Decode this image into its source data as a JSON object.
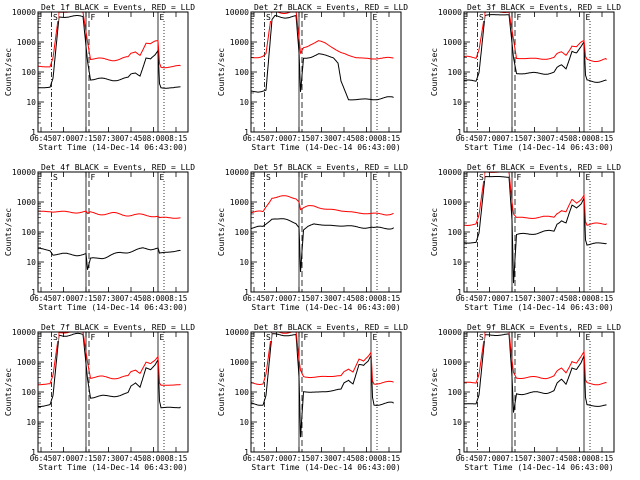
{
  "shared": {
    "time_ticks": [
      "06:45",
      "07:00",
      "07:15",
      "07:30",
      "07:45",
      "08:00",
      "08:15"
    ],
    "y_ticks": [
      "1",
      "10",
      "100",
      "1000",
      "10000"
    ],
    "y_label": "Counts/sec",
    "x_label": "Start Time (14-Dec-14 06:43:00)",
    "colors": {
      "events": "#000000",
      "lld": "#ff0000",
      "axes": "#000000"
    },
    "markers": [
      {
        "label": "S",
        "time_min": 9,
        "style": "dash-dot"
      },
      {
        "label": "F",
        "time_min": 34,
        "style": "dashed"
      },
      {
        "label": "",
        "time_min": 32,
        "style": "solid"
      },
      {
        "label": "E",
        "time_min": 80,
        "style": "solid"
      },
      {
        "label": "",
        "time_min": 84,
        "style": "dotted"
      }
    ]
  },
  "chart_data": [
    {
      "type": "line",
      "title": "Det 1f BLACK = Events, RED = LLD",
      "xlim_min": [
        0,
        100
      ],
      "ylim": [
        1,
        10000
      ],
      "yscale": "log",
      "series": [
        {
          "name": "Events",
          "color": "#000000",
          "x": [
            0,
            8,
            10,
            14,
            16,
            30,
            33,
            35,
            45,
            55,
            60,
            62,
            65,
            68,
            72,
            75,
            78,
            80,
            81,
            82,
            90,
            95
          ],
          "y": [
            30,
            30,
            60,
            7000,
            7000,
            7000,
            250,
            60,
            55,
            58,
            60,
            80,
            95,
            80,
            300,
            260,
            350,
            500,
            40,
            30,
            30,
            32
          ]
        },
        {
          "name": "LLD",
          "color": "#ff0000",
          "x": [
            0,
            8,
            10,
            14,
            16,
            30,
            33,
            35,
            45,
            55,
            60,
            62,
            65,
            68,
            72,
            75,
            78,
            80,
            81,
            82,
            90,
            95
          ],
          "y": [
            150,
            150,
            300,
            10000,
            10000,
            10000,
            1100,
            280,
            260,
            270,
            290,
            400,
            500,
            400,
            900,
            800,
            1000,
            1100,
            200,
            150,
            150,
            160
          ]
        }
      ]
    },
    {
      "type": "line",
      "title": "Det 2f BLACK = Events, RED = LLD",
      "xlim_min": [
        0,
        100
      ],
      "ylim": [
        1,
        10000
      ],
      "yscale": "log",
      "series": [
        {
          "name": "Events",
          "color": "#000000",
          "x": [
            0,
            8,
            10,
            14,
            16,
            30,
            32,
            33,
            35,
            40,
            45,
            50,
            55,
            58,
            60,
            65,
            70,
            75,
            95
          ],
          "y": [
            22,
            25,
            25,
            5000,
            7000,
            7000,
            400,
            20,
            280,
            330,
            400,
            350,
            300,
            200,
            50,
            12,
            12,
            12,
            14
          ]
        },
        {
          "name": "LLD",
          "color": "#ff0000",
          "x": [
            0,
            8,
            10,
            14,
            16,
            30,
            32,
            33,
            35,
            40,
            45,
            50,
            55,
            60,
            65,
            70,
            80,
            95
          ],
          "y": [
            300,
            350,
            400,
            10000,
            10000,
            10000,
            1200,
            400,
            650,
            900,
            1050,
            850,
            650,
            450,
            350,
            300,
            280,
            290
          ]
        }
      ]
    },
    {
      "type": "line",
      "title": "Det 3f BLACK = Events, RED = LLD",
      "xlim_min": [
        0,
        100
      ],
      "ylim": [
        1,
        10000
      ],
      "yscale": "log",
      "series": [
        {
          "name": "Events",
          "color": "#000000",
          "x": [
            0,
            8,
            10,
            14,
            16,
            30,
            33,
            35,
            45,
            55,
            60,
            62,
            65,
            68,
            72,
            75,
            78,
            80,
            81,
            82,
            90,
            95
          ],
          "y": [
            50,
            50,
            100,
            8000,
            8000,
            8000,
            300,
            90,
            90,
            92,
            95,
            130,
            160,
            130,
            550,
            450,
            650,
            900,
            70,
            50,
            50,
            52
          ]
        },
        {
          "name": "LLD",
          "color": "#ff0000",
          "x": [
            0,
            8,
            10,
            14,
            16,
            30,
            33,
            35,
            45,
            55,
            60,
            62,
            65,
            68,
            72,
            75,
            78,
            80,
            81,
            82,
            90,
            95
          ],
          "y": [
            300,
            300,
            600,
            10000,
            10000,
            10000,
            1200,
            280,
            280,
            280,
            290,
            380,
            450,
            380,
            800,
            700,
            900,
            1000,
            300,
            250,
            250,
            260
          ]
        }
      ]
    },
    {
      "type": "line",
      "title": "Det 4f BLACK = Events, RED = LLD",
      "xlim_min": [
        0,
        100
      ],
      "ylim": [
        1,
        10000
      ],
      "yscale": "log",
      "series": [
        {
          "name": "Events",
          "color": "#000000",
          "x": [
            0,
            8,
            10,
            32,
            33,
            35,
            40,
            45,
            50,
            55,
            60,
            65,
            70,
            75,
            80,
            81,
            90,
            95
          ],
          "y": [
            28,
            25,
            18,
            18,
            5,
            12,
            14,
            15,
            17,
            20,
            22,
            25,
            28,
            26,
            30,
            20,
            22,
            24
          ]
        },
        {
          "name": "LLD",
          "color": "#ff0000",
          "x": [
            0,
            8,
            10,
            32,
            33,
            35,
            40,
            45,
            50,
            55,
            60,
            65,
            70,
            75,
            80,
            81,
            90,
            95
          ],
          "y": [
            500,
            480,
            470,
            460,
            380,
            430,
            420,
            410,
            400,
            390,
            380,
            370,
            360,
            350,
            340,
            300,
            290,
            300
          ]
        }
      ]
    },
    {
      "type": "line",
      "title": "Det 5f BLACK = Events, RED = LLD",
      "xlim_min": [
        0,
        100
      ],
      "ylim": [
        1,
        10000
      ],
      "yscale": "log",
      "series": [
        {
          "name": "Events",
          "color": "#000000",
          "x": [
            0,
            8,
            10,
            14,
            16,
            30,
            32,
            33,
            35,
            38,
            42,
            50,
            60,
            70,
            80,
            82,
            90,
            95
          ],
          "y": [
            140,
            140,
            180,
            300,
            300,
            200,
            150,
            5,
            120,
            150,
            180,
            170,
            160,
            150,
            140,
            130,
            140,
            140
          ]
        },
        {
          "name": "LLD",
          "color": "#ff0000",
          "x": [
            0,
            8,
            10,
            14,
            16,
            30,
            32,
            33,
            35,
            38,
            42,
            50,
            60,
            70,
            80,
            82,
            90,
            95
          ],
          "y": [
            450,
            450,
            700,
            1500,
            1500,
            1400,
            1100,
            600,
            650,
            700,
            700,
            600,
            500,
            450,
            400,
            400,
            400,
            420
          ]
        }
      ]
    },
    {
      "type": "line",
      "title": "Det 6f BLACK = Events, RED = LLD",
      "xlim_min": [
        0,
        100
      ],
      "ylim": [
        1,
        10000
      ],
      "yscale": "log",
      "series": [
        {
          "name": "Events",
          "color": "#000000",
          "x": [
            0,
            8,
            10,
            14,
            16,
            30,
            32,
            33,
            35,
            45,
            55,
            60,
            62,
            65,
            68,
            72,
            75,
            78,
            80,
            81,
            82,
            90,
            95
          ],
          "y": [
            45,
            45,
            90,
            7000,
            7000,
            7000,
            250,
            2,
            80,
            90,
            100,
            110,
            200,
            260,
            200,
            700,
            600,
            900,
            1500,
            60,
            40,
            40,
            42
          ]
        },
        {
          "name": "LLD",
          "color": "#ff0000",
          "x": [
            0,
            8,
            10,
            14,
            16,
            30,
            32,
            33,
            35,
            45,
            55,
            60,
            62,
            65,
            68,
            72,
            75,
            78,
            80,
            81,
            82,
            90,
            95
          ],
          "y": [
            180,
            180,
            350,
            10000,
            10000,
            10000,
            1000,
            400,
            300,
            300,
            310,
            330,
            450,
            550,
            450,
            1100,
            900,
            1300,
            1900,
            250,
            180,
            180,
            190
          ]
        }
      ]
    },
    {
      "type": "line",
      "title": "Det 7f BLACK = Events, RED = LLD",
      "xlim_min": [
        0,
        100
      ],
      "ylim": [
        1,
        10000
      ],
      "yscale": "log",
      "series": [
        {
          "name": "Events",
          "color": "#000000",
          "x": [
            0,
            8,
            10,
            14,
            16,
            30,
            33,
            35,
            45,
            55,
            60,
            62,
            65,
            68,
            72,
            75,
            78,
            80,
            81,
            82,
            90,
            95
          ],
          "y": [
            35,
            35,
            70,
            8000,
            8000,
            8000,
            300,
            70,
            70,
            80,
            90,
            150,
            200,
            150,
            650,
            550,
            800,
            1200,
            50,
            30,
            30,
            32
          ]
        },
        {
          "name": "LLD",
          "color": "#ff0000",
          "x": [
            0,
            8,
            10,
            14,
            16,
            30,
            33,
            35,
            45,
            55,
            60,
            62,
            65,
            68,
            72,
            75,
            78,
            80,
            81,
            82,
            90,
            95
          ],
          "y": [
            180,
            180,
            350,
            10000,
            10000,
            10000,
            1100,
            320,
            300,
            310,
            320,
            450,
            550,
            450,
            1000,
            850,
            1100,
            1500,
            200,
            170,
            170,
            180
          ]
        }
      ]
    },
    {
      "type": "line",
      "title": "Det 8f BLACK = Events, RED = LLD",
      "xlim_min": [
        0,
        100
      ],
      "ylim": [
        1,
        10000
      ],
      "yscale": "log",
      "series": [
        {
          "name": "Events",
          "color": "#000000",
          "x": [
            0,
            8,
            10,
            14,
            16,
            30,
            32,
            33,
            35,
            45,
            55,
            60,
            62,
            65,
            68,
            72,
            75,
            78,
            80,
            81,
            82,
            90,
            95
          ],
          "y": [
            40,
            40,
            80,
            8000,
            8000,
            8000,
            300,
            3,
            100,
            100,
            110,
            120,
            200,
            260,
            200,
            800,
            700,
            1000,
            1700,
            70,
            40,
            40,
            42
          ]
        },
        {
          "name": "LLD",
          "color": "#ff0000",
          "x": [
            0,
            8,
            10,
            14,
            16,
            30,
            32,
            33,
            35,
            45,
            55,
            60,
            62,
            65,
            68,
            72,
            75,
            78,
            80,
            81,
            82,
            90,
            95
          ],
          "y": [
            200,
            200,
            400,
            10000,
            10000,
            10000,
            1100,
            500,
            320,
            320,
            330,
            350,
            480,
            600,
            480,
            1200,
            1000,
            1500,
            2200,
            250,
            200,
            200,
            210
          ]
        }
      ]
    },
    {
      "type": "line",
      "title": "Det 9f BLACK = Events, RED = LLD",
      "xlim_min": [
        0,
        100
      ],
      "ylim": [
        1,
        10000
      ],
      "yscale": "log",
      "series": [
        {
          "name": "Events",
          "color": "#000000",
          "x": [
            0,
            8,
            10,
            14,
            16,
            30,
            32,
            33,
            35,
            45,
            55,
            60,
            62,
            65,
            68,
            72,
            75,
            78,
            80,
            81,
            82,
            90,
            95
          ],
          "y": [
            40,
            40,
            80,
            8000,
            8000,
            8000,
            300,
            20,
            90,
            90,
            100,
            110,
            180,
            240,
            180,
            700,
            600,
            900,
            1500,
            60,
            35,
            35,
            37
          ]
        },
        {
          "name": "LLD",
          "color": "#ff0000",
          "x": [
            0,
            8,
            10,
            14,
            16,
            30,
            32,
            33,
            35,
            45,
            55,
            60,
            62,
            65,
            68,
            72,
            75,
            78,
            80,
            81,
            82,
            90,
            95
          ],
          "y": [
            200,
            200,
            400,
            10000,
            10000,
            10000,
            1100,
            450,
            300,
            300,
            310,
            330,
            450,
            580,
            450,
            1150,
            950,
            1400,
            2000,
            230,
            190,
            190,
            200
          ]
        }
      ]
    }
  ]
}
